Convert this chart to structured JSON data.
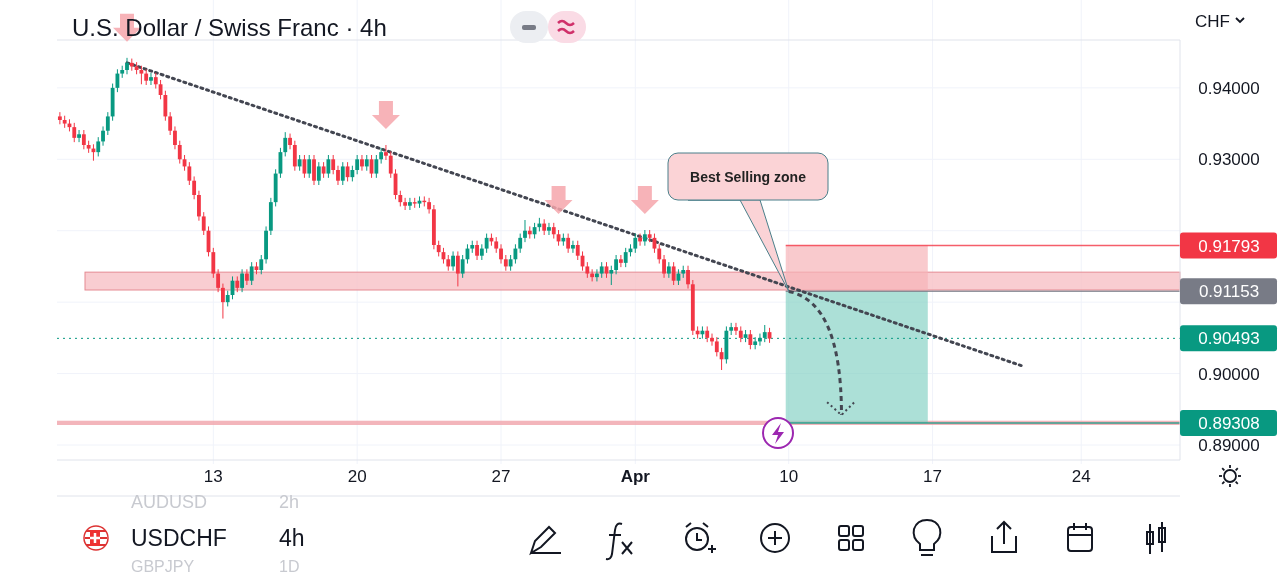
{
  "chart_data": {
    "type": "candlestick",
    "title": "U.S. Dollar / Swiss Franc · 4h",
    "ylabel": "CHF",
    "categories": [
      null,
      null,
      null,
      null,
      null,
      null,
      null,
      null,
      null,
      null,
      null,
      null,
      null,
      null,
      null,
      null,
      null,
      null,
      null,
      null,
      null,
      null,
      null,
      null,
      null,
      null,
      null,
      null,
      null,
      null,
      null,
      null,
      "13",
      null,
      null,
      null,
      null,
      null,
      null,
      null,
      null,
      null,
      null,
      null,
      null,
      null,
      null,
      null,
      null,
      null,
      null,
      null,
      null,
      null,
      null,
      null,
      null,
      null,
      null,
      null,
      null,
      null,
      "20",
      null,
      null,
      null,
      null,
      null,
      null,
      null,
      null,
      null,
      null,
      null,
      null,
      null,
      null,
      null,
      null,
      null,
      null,
      null,
      null,
      null,
      null,
      null,
      null,
      null,
      null,
      null,
      null,
      null,
      "27",
      null,
      null,
      null,
      null,
      null,
      null,
      null,
      null,
      null,
      null,
      null,
      null,
      null,
      null,
      null,
      null,
      null,
      null,
      null,
      null,
      null,
      null,
      null,
      null,
      null,
      null,
      null,
      "Apr",
      null,
      null,
      null,
      null,
      null,
      null,
      null,
      null,
      null,
      null,
      null,
      null,
      null,
      null,
      null,
      null,
      null,
      null,
      null,
      null,
      null,
      null,
      null,
      null,
      null,
      null,
      null,
      null,
      null,
      null,
      null,
      "10",
      null,
      null,
      null,
      null,
      null,
      null,
      null,
      null,
      null,
      null,
      null,
      null,
      null,
      null,
      null,
      null,
      null,
      null,
      null,
      null,
      null,
      null,
      null,
      null,
      null,
      null,
      null,
      null,
      null,
      "17",
      null,
      null,
      null,
      null,
      null,
      null,
      null,
      null,
      null,
      null,
      null,
      null,
      null,
      null,
      null,
      null,
      null,
      null,
      null,
      null,
      null,
      null,
      null,
      null,
      null,
      null,
      null,
      null,
      null,
      null,
      "24",
      null,
      null,
      null,
      null,
      null,
      null,
      null,
      null,
      null,
      null,
      null,
      null,
      null,
      null,
      null,
      null,
      null,
      null,
      null,
      null
    ],
    "ohlc": [
      [
        0.936,
        0.9366,
        0.9349,
        0.9355
      ],
      [
        0.9355,
        0.9361,
        0.9344,
        0.935
      ],
      [
        0.935,
        0.9356,
        0.9339,
        0.9345
      ],
      [
        0.9345,
        0.9351,
        0.9324,
        0.933
      ],
      [
        0.933,
        0.9341,
        0.9324,
        0.9335
      ],
      [
        0.9335,
        0.9341,
        0.9314,
        0.932
      ],
      [
        0.932,
        0.9326,
        0.9309,
        0.9315
      ],
      [
        0.9315,
        0.9321,
        0.9298,
        0.931
      ],
      [
        0.931,
        0.9331,
        0.9304,
        0.9325
      ],
      [
        0.9325,
        0.9346,
        0.9319,
        0.934
      ],
      [
        0.934,
        0.9366,
        0.9334,
        0.936
      ],
      [
        0.936,
        0.9406,
        0.9354,
        0.94
      ],
      [
        0.94,
        0.9426,
        0.9394,
        0.942
      ],
      [
        0.942,
        0.9431,
        0.9414,
        0.9425
      ],
      [
        0.9425,
        0.9442,
        0.9419,
        0.9435
      ],
      [
        0.9435,
        0.9441,
        0.9424,
        0.943
      ],
      [
        0.943,
        0.9436,
        0.9419,
        0.9425
      ],
      [
        0.9425,
        0.9431,
        0.9405,
        0.942
      ],
      [
        0.942,
        0.9426,
        0.9404,
        0.941
      ],
      [
        0.941,
        0.9421,
        0.9404,
        0.9415
      ],
      [
        0.9415,
        0.9421,
        0.9399,
        0.9405
      ],
      [
        0.9405,
        0.9411,
        0.9384,
        0.939
      ],
      [
        0.939,
        0.9396,
        0.9354,
        0.936
      ],
      [
        0.936,
        0.9366,
        0.9334,
        0.934
      ],
      [
        0.934,
        0.9346,
        0.9314,
        0.932
      ],
      [
        0.932,
        0.9326,
        0.9294,
        0.93
      ],
      [
        0.93,
        0.9306,
        0.9284,
        0.929
      ],
      [
        0.929,
        0.9296,
        0.9264,
        0.927
      ],
      [
        0.927,
        0.9276,
        0.9244,
        0.925
      ],
      [
        0.925,
        0.9256,
        0.9214,
        0.922
      ],
      [
        0.922,
        0.9226,
        0.9194,
        0.92
      ],
      [
        0.92,
        0.9206,
        0.9164,
        0.917
      ],
      [
        0.917,
        0.9176,
        0.9134,
        0.914
      ],
      [
        0.914,
        0.9146,
        0.9114,
        0.912
      ],
      [
        0.912,
        0.9126,
        0.9077,
        0.91
      ],
      [
        0.91,
        0.9116,
        0.9094,
        0.911
      ],
      [
        0.911,
        0.9136,
        0.9104,
        0.913
      ],
      [
        0.913,
        0.9136,
        0.9114,
        0.912
      ],
      [
        0.912,
        0.9146,
        0.9114,
        0.914
      ],
      [
        0.914,
        0.9146,
        0.9124,
        0.913
      ],
      [
        0.913,
        0.9156,
        0.9124,
        0.915
      ],
      [
        0.915,
        0.9156,
        0.9139,
        0.9145
      ],
      [
        0.9145,
        0.9166,
        0.9139,
        0.916
      ],
      [
        0.916,
        0.9206,
        0.9154,
        0.92
      ],
      [
        0.92,
        0.9246,
        0.9194,
        0.924
      ],
      [
        0.924,
        0.9286,
        0.9234,
        0.928
      ],
      [
        0.928,
        0.9316,
        0.9274,
        0.931
      ],
      [
        0.931,
        0.9338,
        0.9304,
        0.933
      ],
      [
        0.933,
        0.9336,
        0.9314,
        0.932
      ],
      [
        0.932,
        0.9326,
        0.9284,
        0.929
      ],
      [
        0.929,
        0.9306,
        0.9284,
        0.93
      ],
      [
        0.93,
        0.9306,
        0.9274,
        0.928
      ],
      [
        0.928,
        0.9306,
        0.9274,
        0.93
      ],
      [
        0.93,
        0.9306,
        0.9264,
        0.927
      ],
      [
        0.927,
        0.9296,
        0.9264,
        0.929
      ],
      [
        0.929,
        0.9296,
        0.9274,
        0.928
      ],
      [
        0.928,
        0.9306,
        0.9274,
        0.93
      ],
      [
        0.93,
        0.9306,
        0.9279,
        0.9285
      ],
      [
        0.9285,
        0.9291,
        0.9264,
        0.927
      ],
      [
        0.927,
        0.9296,
        0.9264,
        0.929
      ],
      [
        0.929,
        0.9296,
        0.9269,
        0.9275
      ],
      [
        0.9275,
        0.9291,
        0.9269,
        0.9285
      ],
      [
        0.9285,
        0.9306,
        0.9279,
        0.93
      ],
      [
        0.93,
        0.9306,
        0.9284,
        0.929
      ],
      [
        0.929,
        0.9306,
        0.9284,
        0.93
      ],
      [
        0.93,
        0.9306,
        0.9274,
        0.928
      ],
      [
        0.928,
        0.9306,
        0.9274,
        0.93
      ],
      [
        0.93,
        0.9316,
        0.9294,
        0.931
      ],
      [
        0.931,
        0.932,
        0.9299,
        0.9305
      ],
      [
        0.9305,
        0.9311,
        0.9274,
        0.928
      ],
      [
        0.928,
        0.9286,
        0.9244,
        0.925
      ],
      [
        0.925,
        0.9256,
        0.9234,
        0.924
      ],
      [
        0.924,
        0.9246,
        0.9229,
        0.9235
      ],
      [
        0.9235,
        0.9246,
        0.9229,
        0.924
      ],
      [
        0.924,
        0.9246,
        0.9232,
        0.9238
      ],
      [
        0.9238,
        0.9248,
        0.9232,
        0.9242
      ],
      [
        0.9242,
        0.9248,
        0.9234,
        0.924
      ],
      [
        0.924,
        0.9246,
        0.9224,
        0.923
      ],
      [
        0.923,
        0.9236,
        0.9174,
        0.918
      ],
      [
        0.918,
        0.9186,
        0.9164,
        0.917
      ],
      [
        0.917,
        0.9176,
        0.9154,
        0.916
      ],
      [
        0.916,
        0.9166,
        0.9144,
        0.915
      ],
      [
        0.915,
        0.9171,
        0.9144,
        0.9165
      ],
      [
        0.9165,
        0.9171,
        0.9122,
        0.914
      ],
      [
        0.914,
        0.9166,
        0.9134,
        0.916
      ],
      [
        0.916,
        0.9181,
        0.9154,
        0.9175
      ],
      [
        0.9175,
        0.9186,
        0.9169,
        0.918
      ],
      [
        0.918,
        0.9186,
        0.9159,
        0.9165
      ],
      [
        0.9165,
        0.9181,
        0.9159,
        0.9175
      ],
      [
        0.9175,
        0.9196,
        0.9169,
        0.919
      ],
      [
        0.919,
        0.9196,
        0.9179,
        0.9185
      ],
      [
        0.9185,
        0.9191,
        0.9169,
        0.9175
      ],
      [
        0.9175,
        0.9181,
        0.9154,
        0.916
      ],
      [
        0.916,
        0.9166,
        0.9144,
        0.915
      ],
      [
        0.915,
        0.9166,
        0.9144,
        0.916
      ],
      [
        0.916,
        0.9181,
        0.9154,
        0.9175
      ],
      [
        0.9175,
        0.9196,
        0.9169,
        0.919
      ],
      [
        0.919,
        0.9215,
        0.9184,
        0.92
      ],
      [
        0.92,
        0.9206,
        0.9189,
        0.9195
      ],
      [
        0.9195,
        0.9211,
        0.9189,
        0.9205
      ],
      [
        0.9205,
        0.9218,
        0.9199,
        0.921
      ],
      [
        0.921,
        0.9216,
        0.9194,
        0.92
      ],
      [
        0.92,
        0.9211,
        0.9194,
        0.9205
      ],
      [
        0.9205,
        0.9211,
        0.9189,
        0.9195
      ],
      [
        0.9195,
        0.9201,
        0.9179,
        0.9185
      ],
      [
        0.9185,
        0.9196,
        0.9179,
        0.919
      ],
      [
        0.919,
        0.9196,
        0.9169,
        0.9175
      ],
      [
        0.9175,
        0.9186,
        0.9169,
        0.918
      ],
      [
        0.918,
        0.9186,
        0.9159,
        0.9165
      ],
      [
        0.9165,
        0.9171,
        0.9144,
        0.915
      ],
      [
        0.915,
        0.9156,
        0.9134,
        0.914
      ],
      [
        0.914,
        0.9146,
        0.9129,
        0.9135
      ],
      [
        0.9135,
        0.9146,
        0.9129,
        0.914
      ],
      [
        0.914,
        0.9156,
        0.9134,
        0.915
      ],
      [
        0.915,
        0.9156,
        0.9134,
        0.914
      ],
      [
        0.914,
        0.9151,
        0.9124,
        0.9145
      ],
      [
        0.9145,
        0.9166,
        0.9139,
        0.916
      ],
      [
        0.916,
        0.9166,
        0.9149,
        0.9155
      ],
      [
        0.9155,
        0.9176,
        0.9149,
        0.917
      ],
      [
        0.917,
        0.9181,
        0.9164,
        0.9175
      ],
      [
        0.9175,
        0.9196,
        0.9169,
        0.919
      ],
      [
        0.919,
        0.9196,
        0.9179,
        0.9185
      ],
      [
        0.9185,
        0.9201,
        0.9179,
        0.9195
      ],
      [
        0.9195,
        0.9201,
        0.9184,
        0.919
      ],
      [
        0.919,
        0.9196,
        0.9169,
        0.9175
      ],
      [
        0.9175,
        0.9181,
        0.9154,
        0.916
      ],
      [
        0.916,
        0.9166,
        0.9134,
        0.914
      ],
      [
        0.914,
        0.9156,
        0.9134,
        0.915
      ],
      [
        0.915,
        0.9156,
        0.9124,
        0.913
      ],
      [
        0.913,
        0.9146,
        0.9124,
        0.914
      ],
      [
        0.914,
        0.9151,
        0.9134,
        0.9145
      ],
      [
        0.9145,
        0.9151,
        0.9119,
        0.9125
      ],
      [
        0.9125,
        0.9131,
        0.9054,
        0.906
      ],
      [
        0.906,
        0.9066,
        0.9049,
        0.9055
      ],
      [
        0.9055,
        0.9066,
        0.9049,
        0.906
      ],
      [
        0.906,
        0.9066,
        0.9044,
        0.905
      ],
      [
        0.905,
        0.9056,
        0.9039,
        0.9045
      ],
      [
        0.9045,
        0.9051,
        0.9024,
        0.903
      ],
      [
        0.903,
        0.9036,
        0.9005,
        0.902
      ],
      [
        0.902,
        0.9066,
        0.9014,
        0.906
      ],
      [
        0.906,
        0.9071,
        0.9054,
        0.9065
      ],
      [
        0.9065,
        0.9071,
        0.9054,
        0.906
      ],
      [
        0.906,
        0.9066,
        0.9044,
        0.905
      ],
      [
        0.905,
        0.9061,
        0.9044,
        0.9055
      ],
      [
        0.9055,
        0.9061,
        0.9034,
        0.904
      ],
      [
        0.904,
        0.9051,
        0.9034,
        0.9045
      ],
      [
        0.9045,
        0.9056,
        0.9039,
        0.905
      ],
      [
        0.905,
        0.9068,
        0.9044,
        0.9058
      ],
      [
        0.9058,
        0.9064,
        0.9043,
        0.9049
      ],
      null,
      null,
      null,
      null,
      null,
      null,
      null,
      null,
      null,
      null,
      null,
      null,
      null,
      null,
      null,
      null,
      null,
      null,
      null,
      null,
      null,
      null,
      null,
      null,
      null,
      null,
      null,
      null,
      null,
      null,
      null,
      null,
      null,
      null,
      null,
      null,
      null,
      null,
      null,
      null,
      null,
      null,
      null,
      null,
      null,
      null,
      null,
      null,
      null,
      null,
      null,
      null,
      null,
      null,
      null,
      null,
      null,
      null,
      null,
      null,
      null,
      null,
      null,
      null,
      null,
      null,
      null,
      null,
      null,
      null,
      null,
      null,
      null,
      null,
      null,
      null,
      null,
      null,
      null,
      null,
      null,
      null,
      null,
      null,
      null
    ],
    "series": [
      {
        "type": "line",
        "color": "#434651",
        "line_style": "dotted",
        "values": [
          null,
          null,
          null,
          null,
          null,
          null,
          null,
          null,
          null,
          null,
          null,
          null,
          null,
          null,
          0.9435,
          null,
          null,
          null,
          null,
          null,
          null,
          null,
          null,
          null,
          null,
          null,
          null,
          null,
          null,
          null,
          null,
          null,
          null,
          null,
          null,
          null,
          null,
          null,
          null,
          null,
          null,
          null,
          null,
          null,
          null,
          null,
          null,
          null,
          null,
          null,
          null,
          null,
          null,
          null,
          null,
          null,
          null,
          null,
          null,
          null,
          null,
          null,
          null,
          null,
          null,
          null,
          null,
          null,
          null,
          null,
          null,
          null,
          null,
          null,
          null,
          null,
          null,
          null,
          null,
          null,
          null,
          null,
          null,
          null,
          null,
          null,
          null,
          null,
          null,
          null,
          null,
          null,
          null,
          null,
          null,
          null,
          null,
          null,
          null,
          null,
          null,
          null,
          null,
          null,
          null,
          null,
          null,
          null,
          null,
          null,
          null,
          null,
          null,
          null,
          null,
          null,
          null,
          null,
          null,
          null,
          null,
          null,
          null,
          null,
          null,
          null,
          null,
          null,
          null,
          null,
          null,
          null,
          null,
          null,
          null,
          null,
          null,
          null,
          null,
          null,
          null,
          null,
          null,
          null,
          null,
          null,
          null,
          null,
          null,
          null,
          null,
          null,
          null,
          null,
          null,
          null,
          null,
          null,
          null,
          null,
          null,
          null,
          null,
          null,
          null,
          null,
          null,
          null,
          null,
          null,
          null,
          null,
          null,
          null,
          null,
          null,
          null,
          null,
          null,
          null,
          null,
          null,
          null,
          null,
          null,
          null,
          null,
          null,
          null,
          null,
          null,
          null,
          null,
          null,
          null,
          null,
          null,
          null,
          null,
          null,
          null,
          0.901,
          null,
          null,
          null,
          null,
          null,
          null,
          null,
          null,
          null,
          null,
          null,
          null,
          null,
          null,
          null,
          null,
          null,
          null,
          null,
          null,
          null,
          null,
          null,
          null,
          null,
          null,
          null,
          null,
          null,
          null,
          null,
          null
        ]
      }
    ],
    "ylim": [
      0.8879,
      0.9467
    ],
    "yticks": [
      {
        "value": 0.89,
        "label": "0.89000"
      },
      {
        "value": 0.9,
        "label": "0.90000"
      },
      {
        "value": 0.91,
        "label": null
      },
      {
        "value": 0.92,
        "label": null
      },
      {
        "value": 0.93,
        "label": "0.93000"
      },
      {
        "value": 0.94,
        "label": "0.94000"
      }
    ],
    "grid": true,
    "bands": [
      {
        "axis": "y",
        "from": 0.9117,
        "to": 0.9142,
        "color": "#f7c1c5"
      },
      {
        "axis": "y",
        "from": 0.8928,
        "to": 0.8934,
        "color": "#f0a3aa"
      }
    ],
    "ref_lines": [
      {
        "axis": "y",
        "value": 0.91793,
        "label": "0.91793",
        "color": "#f23645"
      },
      {
        "axis": "y",
        "value": 0.91153,
        "label": "0.91153",
        "color": "#787b86"
      },
      {
        "axis": "y",
        "value": 0.90493,
        "label": "0.90493",
        "color": "#089981",
        "line_style": "dotted"
      },
      {
        "axis": "y",
        "value": 0.89308,
        "label": "0.89308",
        "color": "#089981"
      }
    ],
    "annotations": [
      "Best Selling zone",
      "USDCHF",
      "4h",
      "AUDUSD",
      "2h",
      "GBPJPY",
      "1D"
    ]
  }
}
